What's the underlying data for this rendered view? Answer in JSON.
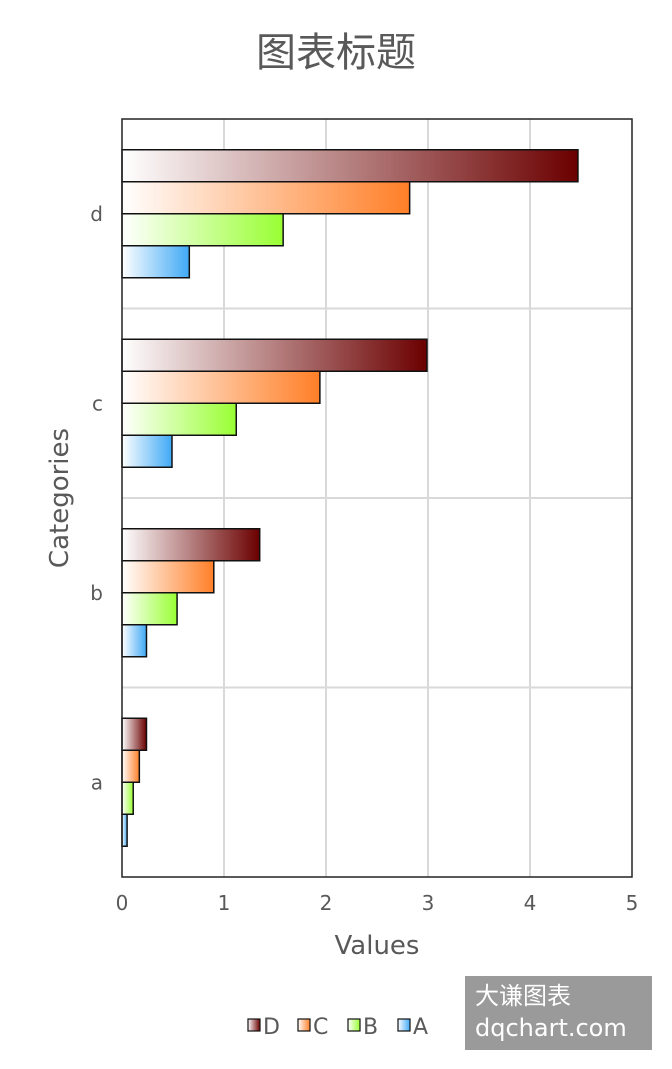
{
  "chart_data": {
    "type": "bar",
    "orientation": "horizontal",
    "title": "图表标题",
    "xlabel": "Values",
    "ylabel": "Categories",
    "categories": [
      "a",
      "b",
      "c",
      "d"
    ],
    "xlim": [
      0,
      5
    ],
    "xticks": [
      "0",
      "1",
      "2",
      "3",
      "4",
      "5"
    ],
    "grid": true,
    "legend_position": "bottom",
    "series": [
      {
        "name": "A",
        "values": [
          0.05,
          0.24,
          0.49,
          0.66
        ],
        "color": "#3fa9f5"
      },
      {
        "name": "B",
        "values": [
          0.11,
          0.54,
          1.12,
          1.58
        ],
        "color": "#99ff33"
      },
      {
        "name": "C",
        "values": [
          0.17,
          0.9,
          1.94,
          2.82
        ],
        "color": "#ff7f27"
      },
      {
        "name": "D",
        "values": [
          0.24,
          1.35,
          2.99,
          4.47
        ],
        "color": "#6b0000"
      }
    ],
    "legend_order": [
      "D",
      "C",
      "B",
      "A"
    ]
  },
  "watermark": {
    "line1": "大谦图表",
    "line2": "dqchart.com"
  }
}
